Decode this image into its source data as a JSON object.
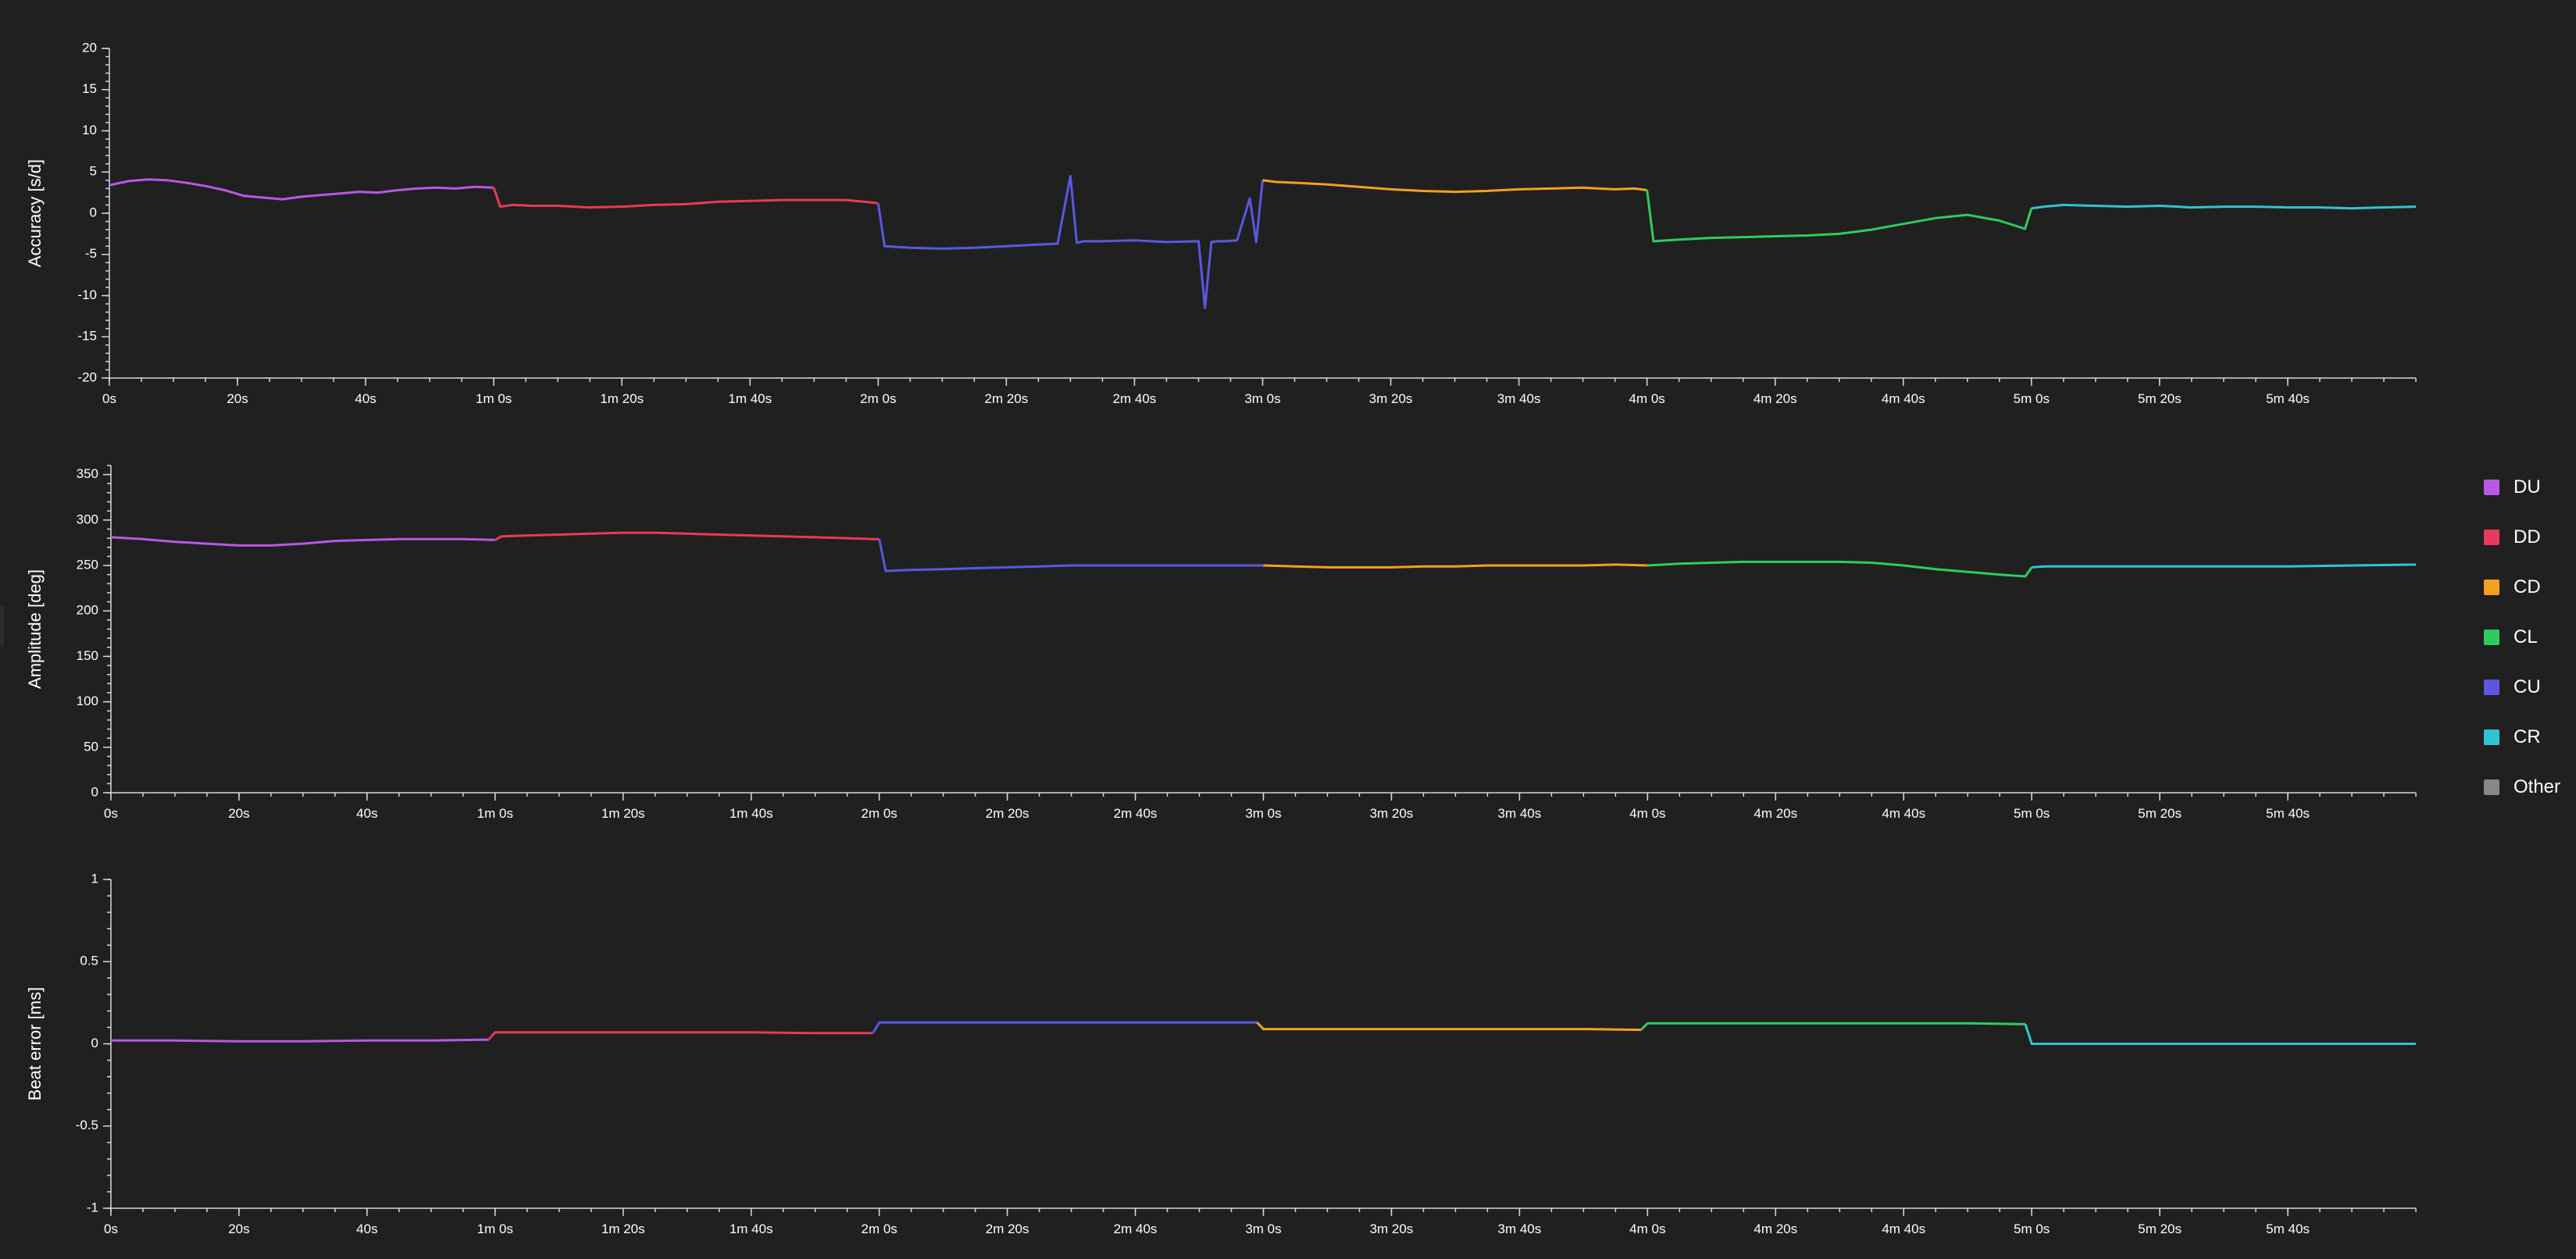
{
  "legend": {
    "items": [
      {
        "label": "DU",
        "color": "#b858e8"
      },
      {
        "label": "DD",
        "color": "#e83a5a"
      },
      {
        "label": "CD",
        "color": "#f5a020"
      },
      {
        "label": "CL",
        "color": "#2ecc60"
      },
      {
        "label": "CU",
        "color": "#5a58e0"
      },
      {
        "label": "CR",
        "color": "#30c4d0"
      },
      {
        "label": "Other",
        "color": "#888888"
      }
    ]
  },
  "chart_data": [
    {
      "type": "line",
      "ylabel": "Accuracy [s/d]",
      "xlabel": "",
      "xlim": [
        0,
        360
      ],
      "ylim": [
        -20,
        20
      ],
      "y_ticks": [
        {
          "value": -20,
          "label": "-20"
        },
        {
          "value": -15,
          "label": "-15"
        },
        {
          "value": -10,
          "label": "-10"
        },
        {
          "value": -5,
          "label": "-5"
        },
        {
          "value": 0,
          "label": "0"
        },
        {
          "value": 5,
          "label": "5"
        },
        {
          "value": 10,
          "label": "10"
        },
        {
          "value": 15,
          "label": "15"
        },
        {
          "value": 20,
          "label": "20"
        }
      ],
      "x_ticks": [
        {
          "value": 0,
          "label": "0s"
        },
        {
          "value": 20,
          "label": "20s"
        },
        {
          "value": 40,
          "label": "40s"
        },
        {
          "value": 60,
          "label": "1m 0s"
        },
        {
          "value": 80,
          "label": "1m 20s"
        },
        {
          "value": 100,
          "label": "1m 40s"
        },
        {
          "value": 120,
          "label": "2m 0s"
        },
        {
          "value": 140,
          "label": "2m 20s"
        },
        {
          "value": 160,
          "label": "2m 40s"
        },
        {
          "value": 180,
          "label": "3m 0s"
        },
        {
          "value": 200,
          "label": "3m 20s"
        },
        {
          "value": 220,
          "label": "3m 40s"
        },
        {
          "value": 240,
          "label": "4m 0s"
        },
        {
          "value": 260,
          "label": "4m 20s"
        },
        {
          "value": 280,
          "label": "4m 40s"
        },
        {
          "value": 300,
          "label": "5m 0s"
        },
        {
          "value": 320,
          "label": "5m 20s"
        },
        {
          "value": 340,
          "label": "5m 40s"
        }
      ],
      "series": [
        {
          "name": "DU",
          "color": "#b858e8",
          "x": [
            0,
            3,
            6,
            9,
            12,
            15,
            18,
            21,
            24,
            27,
            30,
            33,
            36,
            39,
            42,
            45,
            48,
            51,
            54,
            57,
            60
          ],
          "y": [
            3.4,
            3.9,
            4.1,
            4.0,
            3.7,
            3.3,
            2.8,
            2.1,
            1.9,
            1.7,
            2.0,
            2.2,
            2.4,
            2.6,
            2.5,
            2.8,
            3.0,
            3.1,
            3.0,
            3.2,
            3.1
          ]
        },
        {
          "name": "DD",
          "color": "#e83a5a",
          "x": [
            60,
            61,
            63,
            66,
            70,
            75,
            80,
            85,
            90,
            95,
            100,
            105,
            110,
            115,
            119,
            120
          ],
          "y": [
            3.1,
            0.8,
            1.0,
            0.9,
            0.9,
            0.7,
            0.8,
            1.0,
            1.1,
            1.4,
            1.5,
            1.6,
            1.6,
            1.6,
            1.3,
            1.2
          ]
        },
        {
          "name": "CU",
          "color": "#5a58e0",
          "x": [
            120,
            121,
            125,
            130,
            135,
            140,
            145,
            148,
            150,
            151,
            152,
            155,
            160,
            165,
            170,
            171,
            172,
            173,
            174,
            176,
            178,
            179,
            180
          ],
          "y": [
            1.2,
            -4.0,
            -4.2,
            -4.3,
            -4.2,
            -4.0,
            -3.8,
            -3.7,
            4.5,
            -3.6,
            -3.4,
            -3.4,
            -3.3,
            -3.5,
            -3.4,
            -11.5,
            -3.5,
            -3.4,
            -3.4,
            -3.3,
            1.8,
            -3.5,
            4.0
          ]
        },
        {
          "name": "CD",
          "color": "#f5a020",
          "x": [
            180,
            182,
            185,
            190,
            195,
            200,
            205,
            210,
            215,
            220,
            225,
            230,
            235,
            238,
            240
          ],
          "y": [
            4.0,
            3.8,
            3.7,
            3.5,
            3.2,
            2.9,
            2.7,
            2.6,
            2.7,
            2.9,
            3.0,
            3.1,
            2.9,
            3.0,
            2.8
          ]
        },
        {
          "name": "CL",
          "color": "#2ecc60",
          "x": [
            240,
            241,
            245,
            250,
            255,
            260,
            265,
            270,
            275,
            280,
            285,
            290,
            295,
            299,
            300
          ],
          "y": [
            2.8,
            -3.4,
            -3.2,
            -3.0,
            -2.9,
            -2.8,
            -2.7,
            -2.5,
            -2.0,
            -1.3,
            -0.6,
            -0.2,
            -0.9,
            -1.9,
            0.6
          ]
        },
        {
          "name": "CR",
          "color": "#30c4d0",
          "x": [
            300,
            302,
            305,
            310,
            315,
            320,
            325,
            330,
            335,
            340,
            345,
            350,
            355,
            360
          ],
          "y": [
            0.6,
            0.8,
            1.0,
            0.9,
            0.8,
            0.9,
            0.7,
            0.8,
            0.8,
            0.7,
            0.7,
            0.6,
            0.7,
            0.8
          ]
        }
      ]
    },
    {
      "type": "line",
      "ylabel": "Amplitude [deg]",
      "xlabel": "",
      "xlim": [
        0,
        360
      ],
      "ylim": [
        0,
        360
      ],
      "y_ticks": [
        {
          "value": 0,
          "label": "0"
        },
        {
          "value": 50,
          "label": "50"
        },
        {
          "value": 100,
          "label": "100"
        },
        {
          "value": 150,
          "label": "150"
        },
        {
          "value": 200,
          "label": "200"
        },
        {
          "value": 250,
          "label": "250"
        },
        {
          "value": 300,
          "label": "300"
        },
        {
          "value": 350,
          "label": "350"
        }
      ],
      "x_ticks": [
        {
          "value": 0,
          "label": "0s"
        },
        {
          "value": 20,
          "label": "20s"
        },
        {
          "value": 40,
          "label": "40s"
        },
        {
          "value": 60,
          "label": "1m 0s"
        },
        {
          "value": 80,
          "label": "1m 20s"
        },
        {
          "value": 100,
          "label": "1m 40s"
        },
        {
          "value": 120,
          "label": "2m 0s"
        },
        {
          "value": 140,
          "label": "2m 20s"
        },
        {
          "value": 160,
          "label": "2m 40s"
        },
        {
          "value": 180,
          "label": "3m 0s"
        },
        {
          "value": 200,
          "label": "3m 20s"
        },
        {
          "value": 220,
          "label": "3m 40s"
        },
        {
          "value": 240,
          "label": "4m 0s"
        },
        {
          "value": 260,
          "label": "4m 20s"
        },
        {
          "value": 280,
          "label": "4m 40s"
        },
        {
          "value": 300,
          "label": "5m 0s"
        },
        {
          "value": 320,
          "label": "5m 20s"
        },
        {
          "value": 340,
          "label": "5m 40s"
        }
      ],
      "series": [
        {
          "name": "DU",
          "color": "#b858e8",
          "x": [
            0,
            5,
            10,
            15,
            20,
            25,
            30,
            35,
            40,
            45,
            50,
            55,
            60
          ],
          "y": [
            281,
            279,
            276,
            274,
            272,
            272,
            274,
            277,
            278,
            279,
            279,
            279,
            278
          ]
        },
        {
          "name": "DD",
          "color": "#e83a5a",
          "x": [
            60,
            61,
            65,
            70,
            75,
            80,
            85,
            90,
            95,
            100,
            105,
            110,
            115,
            119,
            120
          ],
          "y": [
            278,
            282,
            283,
            284,
            285,
            286,
            286,
            285,
            284,
            283,
            282,
            281,
            280,
            279,
            279
          ]
        },
        {
          "name": "CU",
          "color": "#5a58e0",
          "x": [
            120,
            121,
            125,
            130,
            135,
            140,
            145,
            150,
            155,
            160,
            165,
            170,
            175,
            180
          ],
          "y": [
            279,
            244,
            245,
            246,
            247,
            248,
            249,
            250,
            250,
            250,
            250,
            250,
            250,
            250
          ]
        },
        {
          "name": "CD",
          "color": "#f5a020",
          "x": [
            180,
            185,
            190,
            195,
            200,
            205,
            210,
            215,
            220,
            225,
            230,
            235,
            240
          ],
          "y": [
            250,
            249,
            248,
            248,
            248,
            249,
            249,
            250,
            250,
            250,
            250,
            251,
            250
          ]
        },
        {
          "name": "CL",
          "color": "#2ecc60",
          "x": [
            240,
            245,
            250,
            255,
            260,
            265,
            270,
            275,
            280,
            285,
            290,
            295,
            299,
            300
          ],
          "y": [
            250,
            252,
            253,
            254,
            254,
            254,
            254,
            253,
            250,
            246,
            243,
            240,
            238,
            248
          ]
        },
        {
          "name": "CR",
          "color": "#30c4d0",
          "x": [
            300,
            302,
            310,
            320,
            330,
            340,
            350,
            360
          ],
          "y": [
            248,
            249,
            249,
            249,
            249,
            249,
            250,
            251
          ]
        }
      ]
    },
    {
      "type": "line",
      "ylabel": "Beat error [ms]",
      "xlabel": "",
      "xlim": [
        0,
        360
      ],
      "ylim": [
        -1,
        1
      ],
      "y_ticks": [
        {
          "value": -1,
          "label": "-1"
        },
        {
          "value": -0.5,
          "label": "-0.5"
        },
        {
          "value": 0,
          "label": "0"
        },
        {
          "value": 0.5,
          "label": "0.5"
        },
        {
          "value": 1,
          "label": "1"
        }
      ],
      "x_ticks": [
        {
          "value": 0,
          "label": "0s"
        },
        {
          "value": 20,
          "label": "20s"
        },
        {
          "value": 40,
          "label": "40s"
        },
        {
          "value": 60,
          "label": "1m 0s"
        },
        {
          "value": 80,
          "label": "1m 20s"
        },
        {
          "value": 100,
          "label": "1m 40s"
        },
        {
          "value": 120,
          "label": "2m 0s"
        },
        {
          "value": 140,
          "label": "2m 20s"
        },
        {
          "value": 160,
          "label": "2m 40s"
        },
        {
          "value": 180,
          "label": "3m 0s"
        },
        {
          "value": 200,
          "label": "3m 20s"
        },
        {
          "value": 220,
          "label": "3m 40s"
        },
        {
          "value": 240,
          "label": "4m 0s"
        },
        {
          "value": 260,
          "label": "4m 20s"
        },
        {
          "value": 280,
          "label": "4m 40s"
        },
        {
          "value": 300,
          "label": "5m 0s"
        },
        {
          "value": 320,
          "label": "5m 20s"
        },
        {
          "value": 340,
          "label": "5m 40s"
        }
      ],
      "series": [
        {
          "name": "DU",
          "color": "#b858e8",
          "x": [
            0,
            10,
            20,
            30,
            40,
            50,
            58,
            59
          ],
          "y": [
            0.02,
            0.02,
            0.015,
            0.015,
            0.02,
            0.02,
            0.025,
            0.025
          ]
        },
        {
          "name": "DD",
          "color": "#e83a5a",
          "x": [
            59,
            60,
            70,
            80,
            90,
            100,
            110,
            119
          ],
          "y": [
            0.025,
            0.07,
            0.07,
            0.07,
            0.07,
            0.07,
            0.065,
            0.065
          ]
        },
        {
          "name": "CU",
          "color": "#5a58e0",
          "x": [
            119,
            120,
            130,
            140,
            150,
            160,
            170,
            178,
            179
          ],
          "y": [
            0.065,
            0.13,
            0.13,
            0.13,
            0.13,
            0.13,
            0.13,
            0.13,
            0.13
          ]
        },
        {
          "name": "CD",
          "color": "#f5a020",
          "x": [
            179,
            180,
            190,
            200,
            210,
            220,
            230,
            239
          ],
          "y": [
            0.13,
            0.09,
            0.09,
            0.09,
            0.09,
            0.09,
            0.09,
            0.085
          ]
        },
        {
          "name": "CL",
          "color": "#2ecc60",
          "x": [
            239,
            240,
            250,
            260,
            270,
            280,
            290,
            298,
            299
          ],
          "y": [
            0.085,
            0.125,
            0.125,
            0.125,
            0.125,
            0.125,
            0.125,
            0.12,
            0.12
          ]
        },
        {
          "name": "CR",
          "color": "#30c4d0",
          "x": [
            299,
            300,
            310,
            320,
            330,
            340,
            350,
            360
          ],
          "y": [
            0.12,
            0.0,
            0.0,
            0.0,
            0.0,
            0.0,
            0.0,
            0.0
          ]
        }
      ]
    }
  ]
}
